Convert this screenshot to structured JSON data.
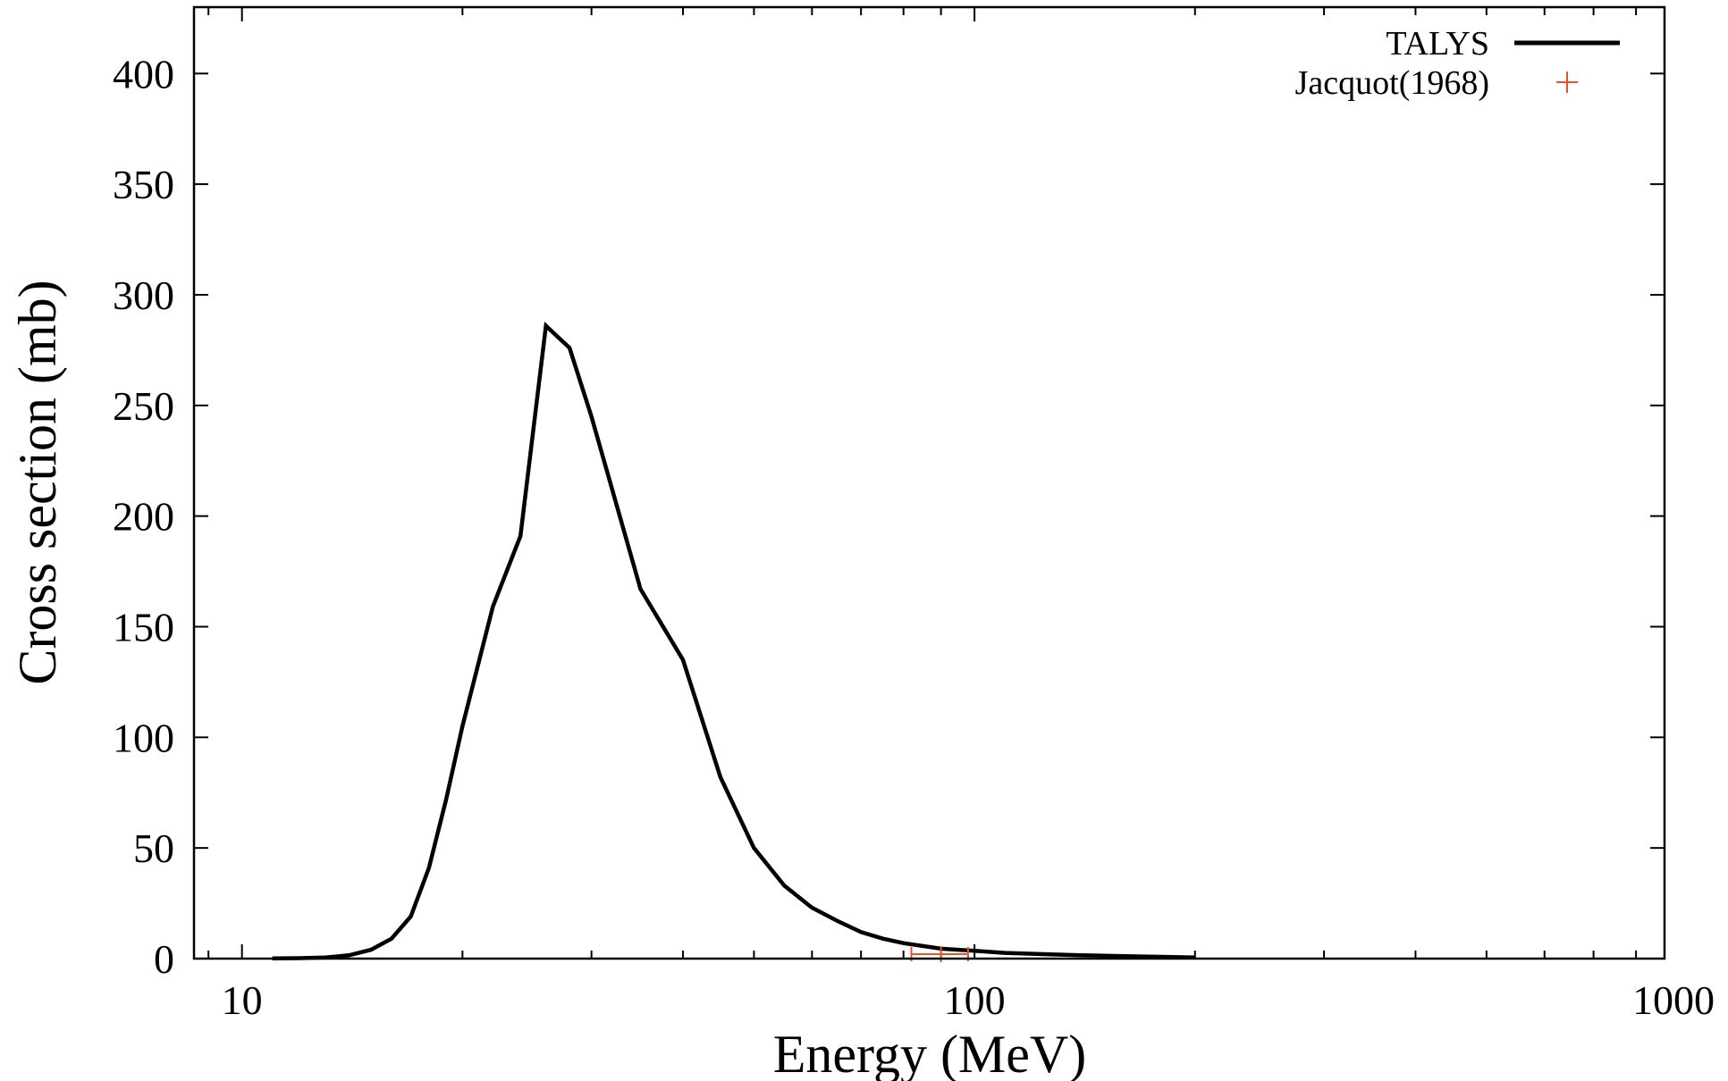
{
  "chart_data": {
    "type": "line",
    "title": "",
    "xlabel": "Energy (MeV)",
    "ylabel": "Cross section (mb)",
    "xscale": "log",
    "xlim": [
      8.6,
      875
    ],
    "ylim": [
      0,
      430
    ],
    "grid": false,
    "legend_position": "top-right",
    "x_ticks": [
      {
        "value": 10,
        "label": "10"
      },
      {
        "value": 100,
        "label": "100"
      },
      {
        "value": 1000,
        "label": "1000"
      }
    ],
    "y_ticks": [
      {
        "value": 0,
        "label": "0"
      },
      {
        "value": 50,
        "label": "50"
      },
      {
        "value": 100,
        "label": "100"
      },
      {
        "value": 150,
        "label": "150"
      },
      {
        "value": 200,
        "label": "200"
      },
      {
        "value": 250,
        "label": "250"
      },
      {
        "value": 300,
        "label": "300"
      },
      {
        "value": 350,
        "label": "350"
      },
      {
        "value": 400,
        "label": "400"
      }
    ],
    "series": [
      {
        "name": "TALYS",
        "style": "line",
        "color": "#000000",
        "x": [
          11,
          12,
          13,
          14,
          15,
          16,
          17,
          18,
          19,
          20,
          22,
          24,
          26,
          28,
          30,
          35,
          40,
          45,
          50,
          55,
          60,
          65,
          70,
          75,
          80,
          90,
          100,
          110,
          120,
          130,
          140,
          150,
          160,
          180,
          200
        ],
        "y": [
          0.1,
          0.2,
          0.5,
          1.5,
          4,
          9,
          19,
          41,
          72,
          105,
          159,
          191,
          286,
          276,
          245,
          167,
          135,
          82,
          50,
          33,
          23,
          17,
          12,
          9,
          7,
          4.5,
          3.5,
          2.6,
          2.2,
          1.8,
          1.5,
          1.3,
          1.1,
          0.8,
          0.5
        ]
      },
      {
        "name": "Jacquot(1968)",
        "style": "points",
        "marker": "plus",
        "color": "#e8542a",
        "points": [
          {
            "x": 90,
            "y": 2,
            "xerr": [
              82,
              98
            ],
            "yerr": [
              0.5,
              3.5
            ]
          }
        ]
      }
    ]
  }
}
